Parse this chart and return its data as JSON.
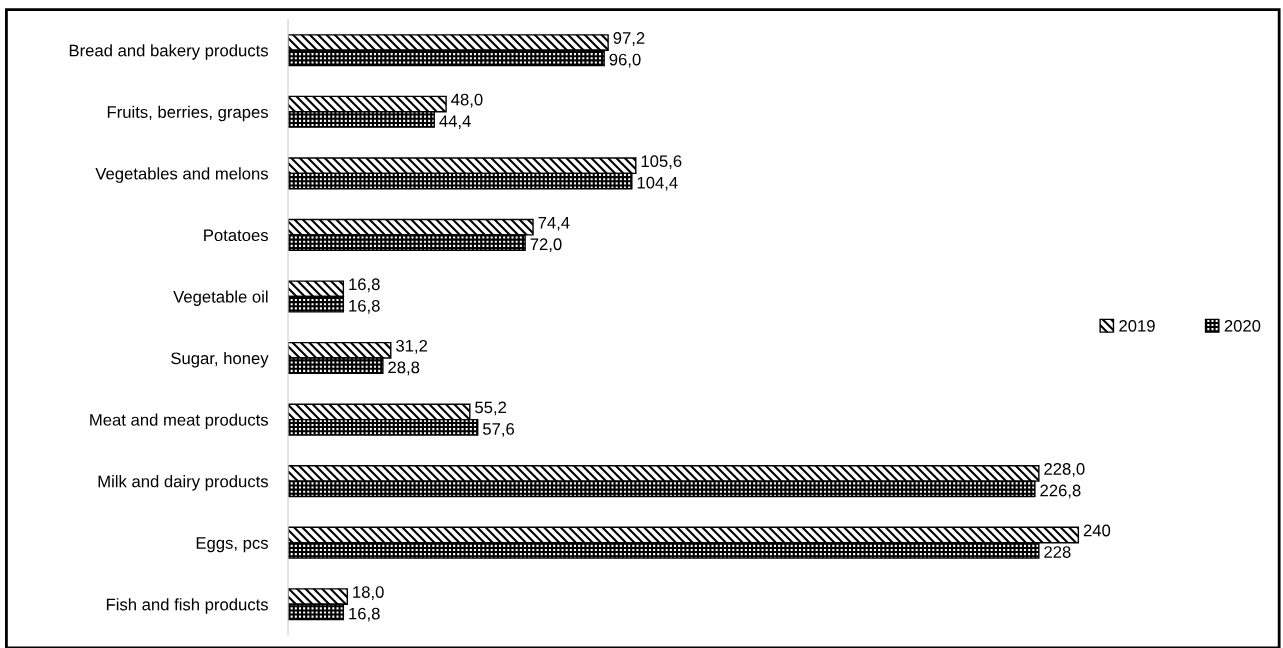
{
  "chart_data": {
    "type": "bar",
    "orientation": "horizontal",
    "categories": [
      "Bread and bakery products",
      "Fruits, berries, grapes",
      "Vegetables and melons",
      "Potatoes",
      "Vegetable oil",
      "Sugar, honey",
      "Meat and meat products",
      "Milk and dairy products",
      "Eggs, pcs",
      "Fish and fish products"
    ],
    "series": [
      {
        "name": "2019",
        "color": "#000000",
        "values": [
          97.2,
          48.0,
          105.6,
          74.4,
          16.8,
          31.2,
          55.2,
          228.0,
          240,
          18.0
        ],
        "value_labels": [
          "97,2",
          "48,0",
          "105,6",
          "74,4",
          "16,8",
          "31,2",
          "55,2",
          "228,0",
          "240",
          "18,0"
        ]
      },
      {
        "name": "2020",
        "color": "#000000",
        "values": [
          96.0,
          44.4,
          104.4,
          72.0,
          16.8,
          28.8,
          57.6,
          226.8,
          228,
          16.8
        ],
        "value_labels": [
          "96,0",
          "44,4",
          "104,4",
          "72,0",
          "16,8",
          "28,8",
          "57,6",
          "226,8",
          "228",
          "16,8"
        ]
      }
    ],
    "legend": "right",
    "grid": false
  }
}
